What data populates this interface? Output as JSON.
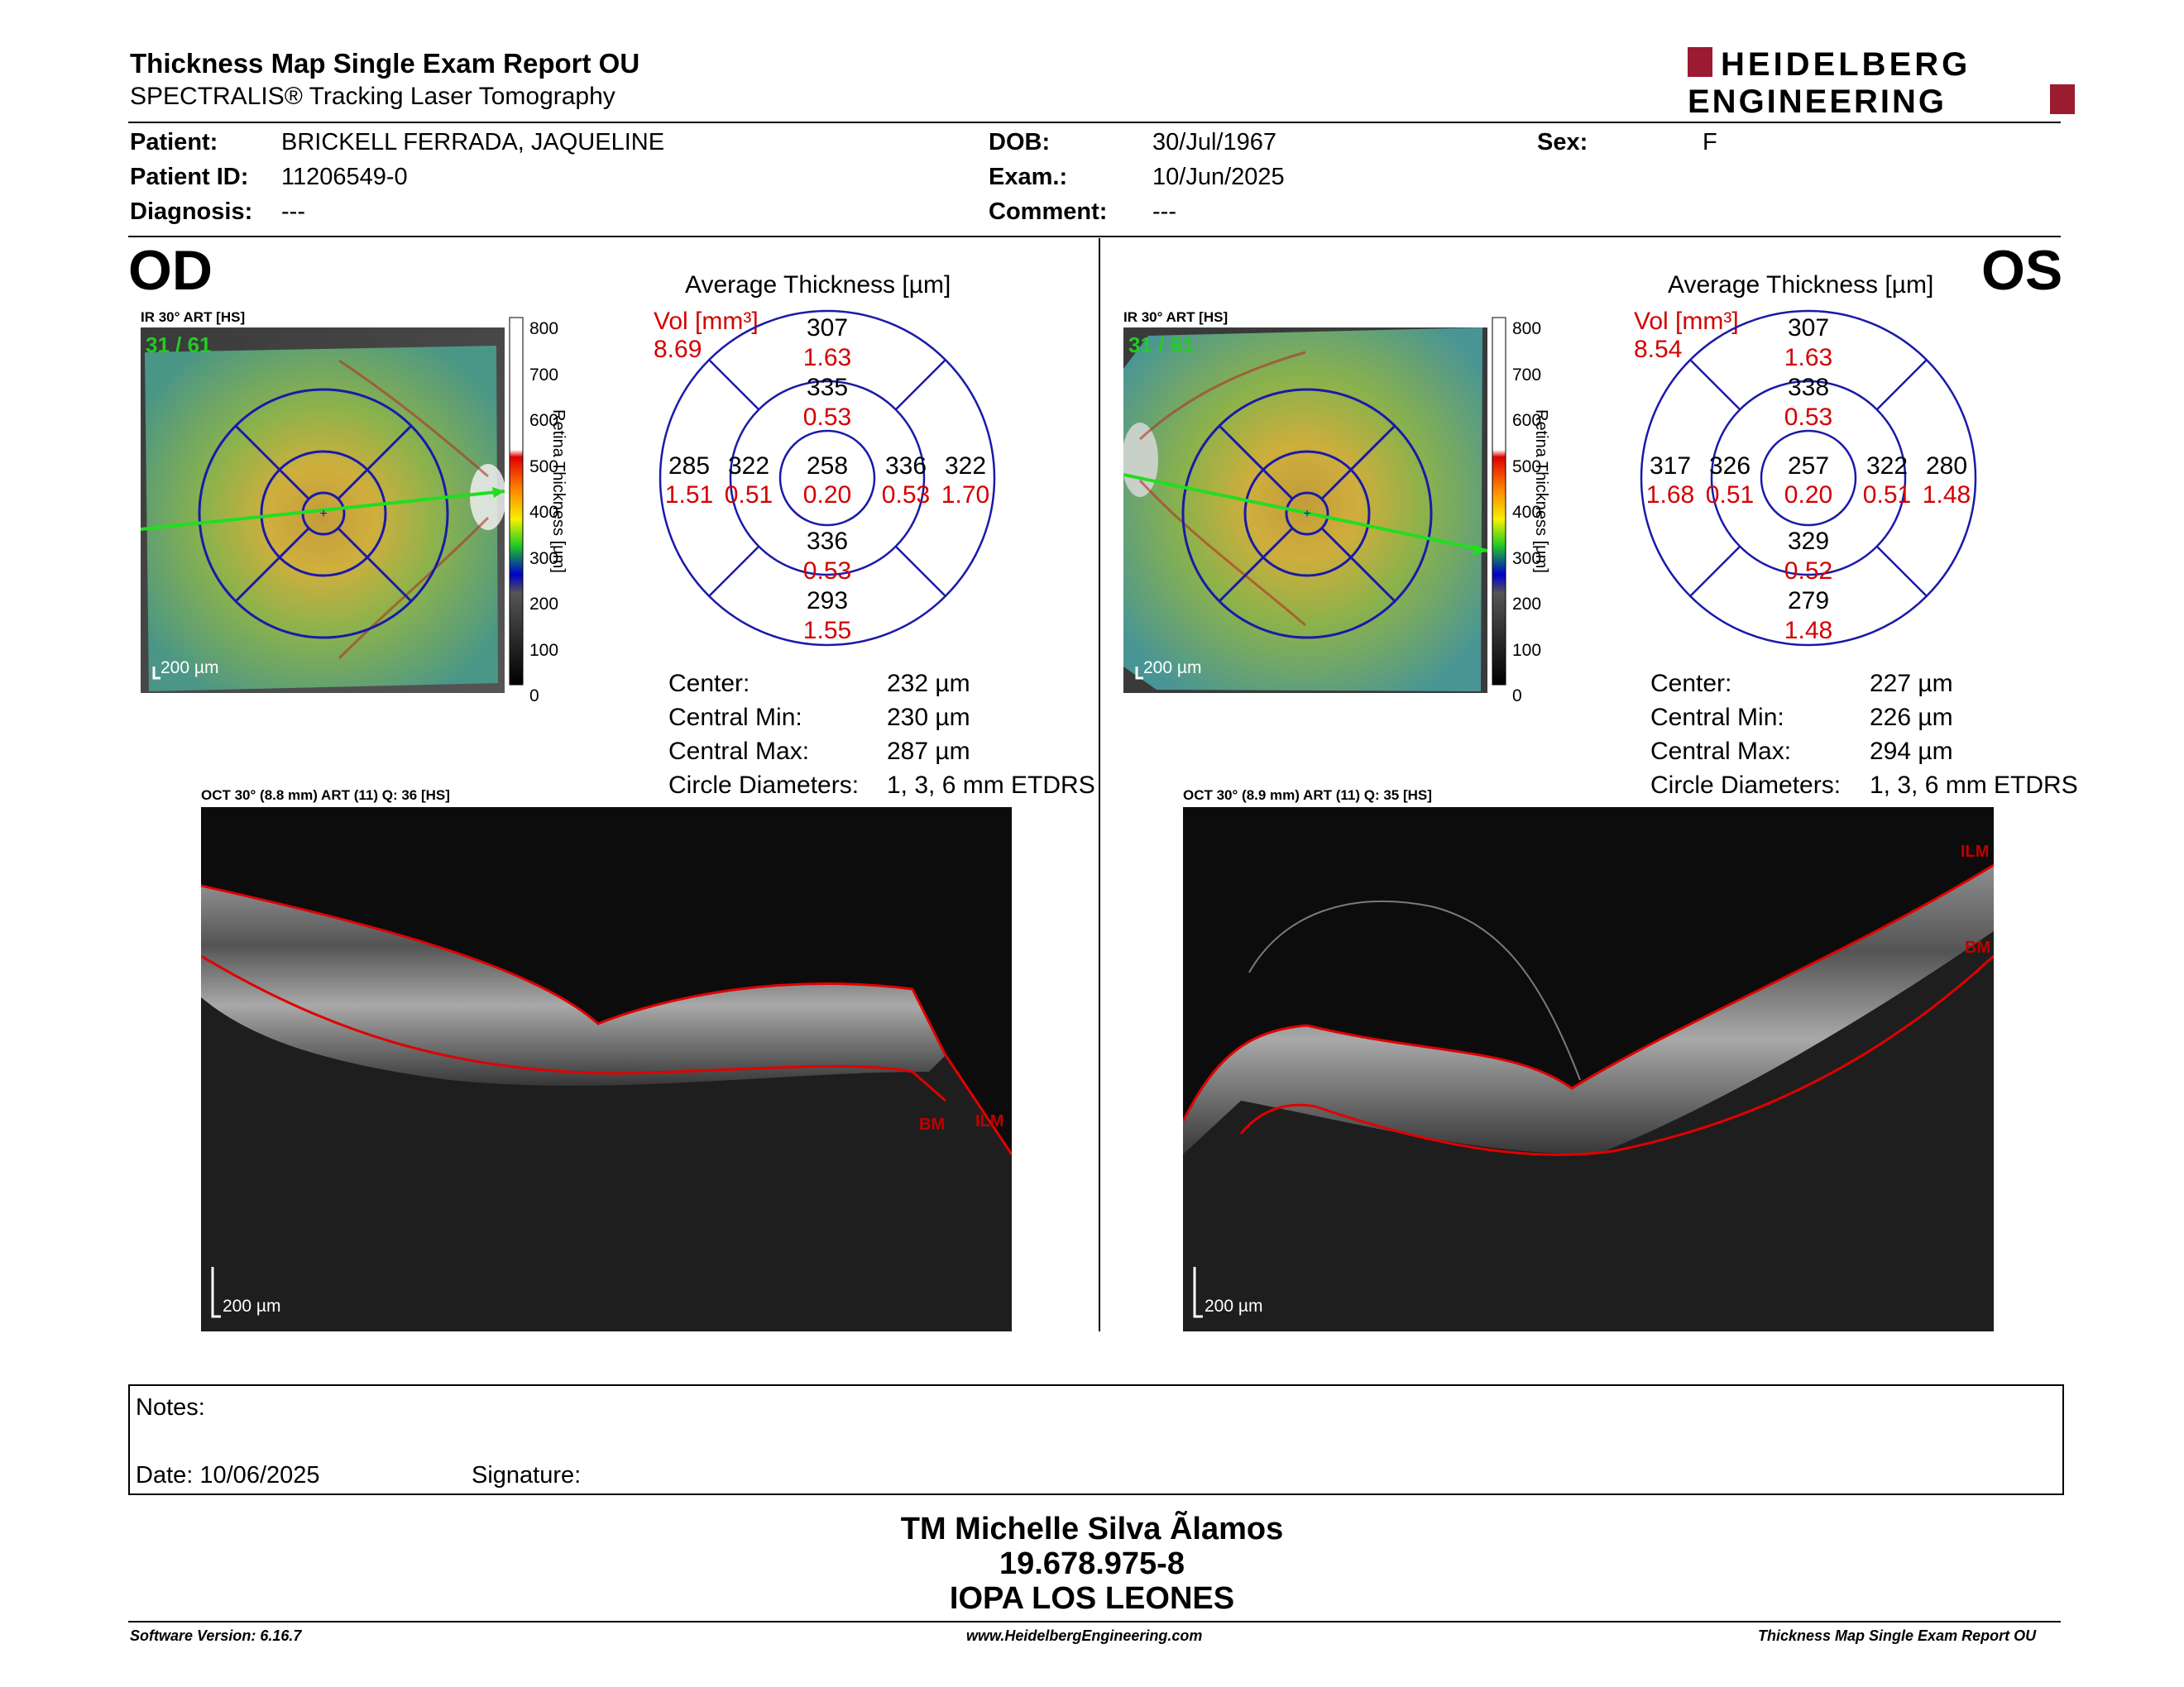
{
  "report": {
    "title": "Thickness Map Single Exam Report OU",
    "subtitle": "SPECTRALIS® Tracking Laser Tomography",
    "logo_line1": "HEIDELBERG",
    "logo_line2": "ENGINEERING"
  },
  "patient": {
    "patient_label": "Patient:",
    "patient_value": "BRICKELL FERRADA, JAQUELINE",
    "id_label": "Patient ID:",
    "id_value": "11206549-0",
    "diagnosis_label": "Diagnosis:",
    "diagnosis_value": "---",
    "dob_label": "DOB:",
    "dob_value": "30/Jul/1967",
    "exam_label": "Exam.:",
    "exam_value": "10/Jun/2025",
    "comment_label": "Comment:",
    "comment_value": "---",
    "sex_label": "Sex:",
    "sex_value": "F"
  },
  "od": {
    "tag": "OD",
    "ir_caption": "IR 30° ART [HS]",
    "frame": "31 / 61",
    "scale_label": "200 µm",
    "colorbar_ticks": [
      "800",
      "700",
      "600",
      "500",
      "400",
      "300",
      "200",
      "100",
      "0"
    ],
    "colorbar_title": "Retina Thickness [µm]",
    "avg_title": "Average Thickness [µm]",
    "vol_label": "Vol [mm³]",
    "vol_value": "8.69",
    "etdrs": {
      "sup_outer": "307",
      "sup_outer_vol": "1.63",
      "sup_inner": "335",
      "sup_inner_vol": "0.53",
      "temp_outer": "285",
      "temp_outer_vol": "1.51",
      "temp_inner": "322",
      "temp_inner_vol": "0.51",
      "center": "258",
      "center_vol": "0.20",
      "nas_inner": "336",
      "nas_inner_vol": "0.53",
      "nas_outer": "322",
      "nas_outer_vol": "1.70",
      "inf_inner": "336",
      "inf_inner_vol": "0.53",
      "inf_outer": "293",
      "inf_outer_vol": "1.55"
    },
    "stats": [
      {
        "label": "Center:",
        "value": "232 µm"
      },
      {
        "label": "Central Min:",
        "value": "230 µm"
      },
      {
        "label": "Central Max:",
        "value": "287 µm"
      },
      {
        "label": "Circle Diameters:",
        "value": "1, 3, 6 mm ETDRS"
      }
    ],
    "oct_caption": "OCT 30° (8.8 mm) ART (11) Q: 36 [HS]",
    "oct_scale": "200 µm",
    "ilm_label": "ILM",
    "bm_label": "BM"
  },
  "os": {
    "tag": "OS",
    "ir_caption": "IR 30° ART [HS]",
    "frame": "31 / 61",
    "scale_label": "200 µm",
    "colorbar_ticks": [
      "800",
      "700",
      "600",
      "500",
      "400",
      "300",
      "200",
      "100",
      "0"
    ],
    "colorbar_title": "Retina Thickness [µm]",
    "avg_title": "Average Thickness [µm]",
    "vol_label": "Vol [mm³]",
    "vol_value": "8.54",
    "etdrs": {
      "sup_outer": "307",
      "sup_outer_vol": "1.63",
      "sup_inner": "338",
      "sup_inner_vol": "0.53",
      "temp_outer": "280",
      "temp_outer_vol": "1.48",
      "temp_inner": "322",
      "temp_inner_vol": "0.51",
      "center": "257",
      "center_vol": "0.20",
      "nas_inner": "326",
      "nas_inner_vol": "0.51",
      "nas_outer": "317",
      "nas_outer_vol": "1.68",
      "inf_inner": "329",
      "inf_inner_vol": "0.52",
      "inf_outer": "279",
      "inf_outer_vol": "1.48"
    },
    "stats": [
      {
        "label": "Center:",
        "value": "227 µm"
      },
      {
        "label": "Central Min:",
        "value": "226 µm"
      },
      {
        "label": "Central Max:",
        "value": "294 µm"
      },
      {
        "label": "Circle Diameters:",
        "value": "1, 3, 6 mm ETDRS"
      }
    ],
    "oct_caption": "OCT 30° (8.9 mm) ART (11) Q: 35 [HS]",
    "oct_scale": "200 µm",
    "ilm_label": "ILM",
    "bm_label": "BM"
  },
  "notes": {
    "notes_label": "Notes:",
    "date_label": "Date: 10/06/2025",
    "signature_label": "Signature:"
  },
  "signer": {
    "name": "TM Michelle Silva Ãlamos",
    "rut": "19.678.975-8",
    "institution": "IOPA LOS LEONES"
  },
  "footer": {
    "software": "Software Version: 6.16.7",
    "website": "www.HeidelbergEngineering.com",
    "report_name": "Thickness Map Single Exam Report OU"
  },
  "colors": {
    "accent_red": "#d40000",
    "circle_blue": "#1a1aa8",
    "logo_red": "#9b1b30"
  }
}
